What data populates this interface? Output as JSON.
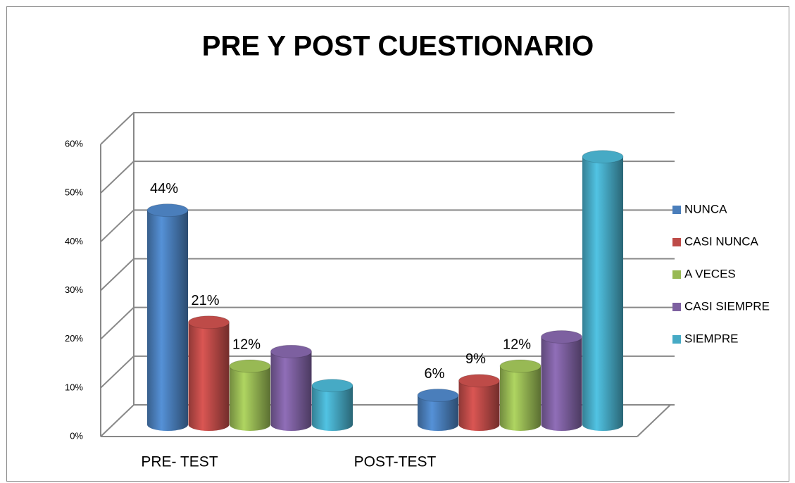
{
  "chart_data": {
    "type": "bar3d",
    "title": "PRE Y POST CUESTIONARIO",
    "categories": [
      "PRE- TEST",
      "POST-TEST"
    ],
    "series": [
      {
        "name": "NUNCA",
        "color": "#4a7ebb",
        "values": [
          44,
          6
        ],
        "value_labels": [
          "44%",
          "6%"
        ]
      },
      {
        "name": "CASI NUNCA",
        "color": "#be4b48",
        "values": [
          21,
          9
        ],
        "value_labels": [
          "21%",
          "9%"
        ]
      },
      {
        "name": "A VECES",
        "color": "#98b954",
        "values": [
          12,
          12
        ],
        "value_labels": [
          "12%",
          "12%"
        ]
      },
      {
        "name": "CASI SIEMPRE",
        "color": "#7d60a0",
        "values": [
          15,
          18
        ],
        "value_labels": [
          null,
          null
        ]
      },
      {
        "name": "SIEMPRE",
        "color": "#46aac5",
        "values": [
          8,
          55
        ],
        "value_labels": [
          null,
          null
        ]
      }
    ],
    "ylim": [
      0,
      60
    ],
    "yticks": [
      {
        "value": 0,
        "label": "0%"
      },
      {
        "value": 10,
        "label": "10%"
      },
      {
        "value": 20,
        "label": "20%"
      },
      {
        "value": 30,
        "label": "30%"
      },
      {
        "value": 40,
        "label": "40%"
      },
      {
        "value": 50,
        "label": "50%"
      },
      {
        "value": 60,
        "label": "60%"
      }
    ],
    "grid": true,
    "legend": "right"
  }
}
